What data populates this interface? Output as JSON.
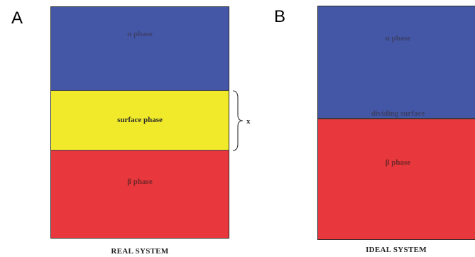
{
  "panels": {
    "a": {
      "letter": "A",
      "caption": "REAL SYSTEM",
      "alpha_label": "α phase",
      "surface_label": "surface phase",
      "beta_label": "β phase",
      "thickness_label": "x",
      "colors": {
        "alpha": "#4457a6",
        "surface": "#f0ea2b",
        "beta": "#e8383d"
      }
    },
    "b": {
      "letter": "B",
      "caption": "IDEAL SYSTEM",
      "alpha_label": "α phase",
      "dividing_label": "dividing surface",
      "beta_label": "β phase",
      "colors": {
        "alpha": "#4457a6",
        "beta": "#e8383d"
      }
    }
  }
}
